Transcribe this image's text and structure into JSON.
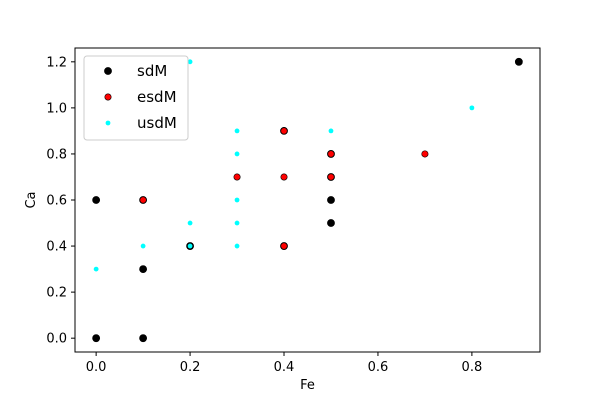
{
  "chart_data": {
    "type": "scatter",
    "title": "",
    "xlabel": "Fe",
    "ylabel": "Ca",
    "xlim": [
      -0.045,
      0.945
    ],
    "ylim": [
      -0.06,
      1.26
    ],
    "xticks": [
      0.0,
      0.2,
      0.4,
      0.6,
      0.8
    ],
    "xtick_labels": [
      "0.0",
      "0.2",
      "0.4",
      "0.6",
      "0.8"
    ],
    "yticks": [
      0.0,
      0.2,
      0.4,
      0.6,
      0.8,
      1.0,
      1.2
    ],
    "ytick_labels": [
      "0.0",
      "0.2",
      "0.4",
      "0.6",
      "0.8",
      "1.0",
      "1.2"
    ],
    "grid": false,
    "legend_position": "top-left",
    "series": [
      {
        "name": "sdM",
        "color": "#000000",
        "points": [
          [
            0.0,
            0.0
          ],
          [
            0.1,
            0.0
          ],
          [
            0.0,
            0.6
          ],
          [
            0.1,
            0.3
          ],
          [
            0.2,
            0.4
          ],
          [
            0.5,
            0.5
          ],
          [
            0.5,
            0.6
          ],
          [
            0.5,
            0.7
          ],
          [
            0.5,
            0.8
          ],
          [
            0.4,
            0.9
          ],
          [
            0.4,
            0.4
          ],
          [
            0.1,
            0.6
          ],
          [
            0.9,
            1.2
          ]
        ]
      },
      {
        "name": "esdM",
        "color": "#ff0000",
        "points": [
          [
            0.1,
            0.6
          ],
          [
            0.4,
            0.4
          ],
          [
            0.4,
            0.7
          ],
          [
            0.4,
            0.9
          ],
          [
            0.3,
            0.7
          ],
          [
            0.5,
            0.7
          ],
          [
            0.5,
            0.8
          ],
          [
            0.7,
            0.8
          ]
        ]
      },
      {
        "name": "usdM",
        "color": "#00ffff",
        "points": [
          [
            0.0,
            0.3
          ],
          [
            0.1,
            0.4
          ],
          [
            0.2,
            0.4
          ],
          [
            0.2,
            0.5
          ],
          [
            0.3,
            0.4
          ],
          [
            0.3,
            0.5
          ],
          [
            0.3,
            0.6
          ],
          [
            0.3,
            0.8
          ],
          [
            0.3,
            0.9
          ],
          [
            0.5,
            0.9
          ],
          [
            0.2,
            1.2
          ],
          [
            0.8,
            1.0
          ]
        ]
      }
    ]
  }
}
